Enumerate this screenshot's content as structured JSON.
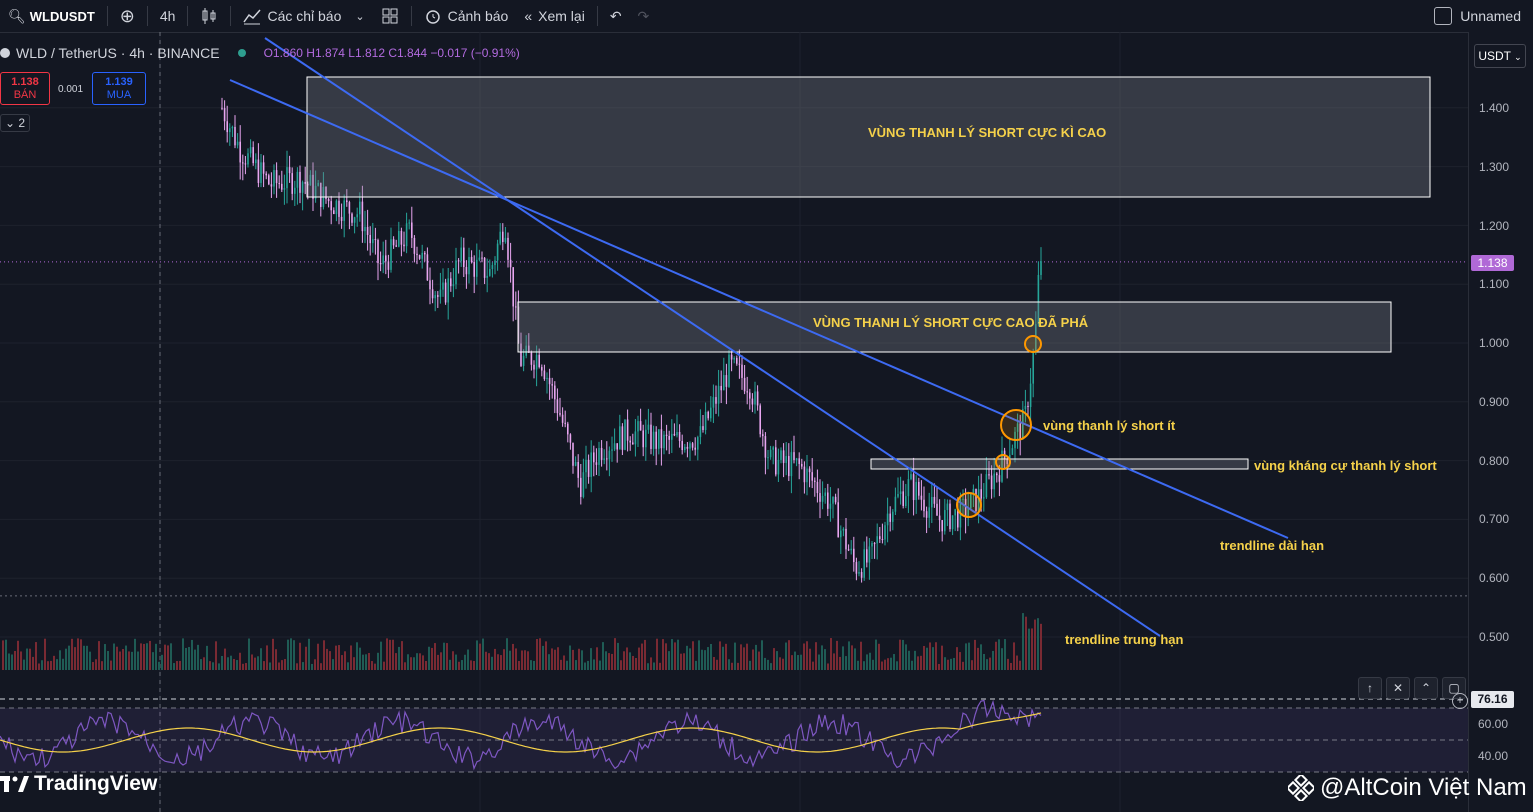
{
  "toolbar": {
    "symbol": "WLDUSDT",
    "interval": "4h",
    "indicators": "Các chỉ báo",
    "alerts": "Cảnh báo",
    "replay": "Xem lại",
    "layout_name": "Unnamed"
  },
  "legend": {
    "title": "WLD / TetherUS · 4h · BINANCE",
    "ohlc": "O1.860  H1.874  L1.812  C1.844  −0.017 (−0.91%)"
  },
  "trade": {
    "sell_price": "1.138",
    "sell_label": "BÁN",
    "spread": "0.001",
    "buy_price": "1.139",
    "buy_label": "MUA",
    "collapse_count": "2"
  },
  "currency": "USDT",
  "current_price": "1.138",
  "price_ticks": [
    "1.400",
    "1.300",
    "1.200",
    "1.100",
    "1.000",
    "0.900",
    "0.800",
    "0.700",
    "0.600",
    "0.500"
  ],
  "rsi": {
    "value": "76.16",
    "ticks": [
      "60.00",
      "40.00"
    ]
  },
  "annotations": {
    "zone_top": "VÙNG THANH LÝ SHORT CỰC KÌ CAO",
    "zone_mid": "VÙNG THANH LÝ SHORT CỰC CAO ĐÃ PHÁ",
    "short_liq_small": "vùng thanh lý short ít",
    "resistance_zone": "vùng kháng cự thanh lý short",
    "trend_long": "trendline dài hạn",
    "trend_mid": "trendline trung hạn"
  },
  "branding": {
    "logo_text": "TradingView",
    "watermark": "@AltCoin Việt Nam"
  },
  "colors": {
    "background": "#131722",
    "trendline": "#3d6af2",
    "annotation": "#f5d14a",
    "price_tag": "#b069d6",
    "up_candle": "#26a69a",
    "down_candle": "#e8a6f0"
  }
}
